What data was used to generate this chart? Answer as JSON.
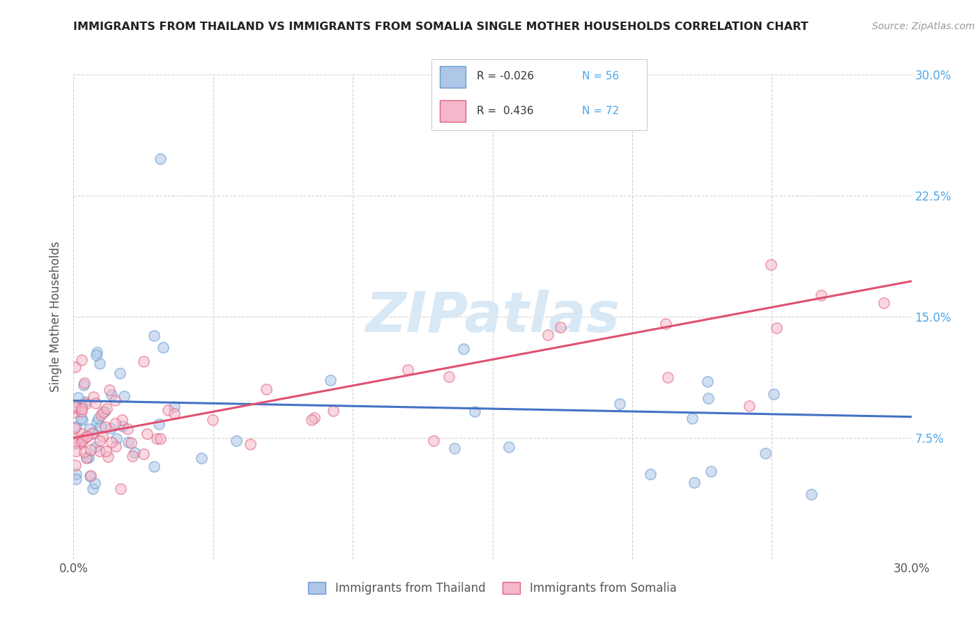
{
  "title": "IMMIGRANTS FROM THAILAND VS IMMIGRANTS FROM SOMALIA SINGLE MOTHER HOUSEHOLDS CORRELATION CHART",
  "source": "Source: ZipAtlas.com",
  "ylabel": "Single Mother Households",
  "xlim": [
    0.0,
    0.3
  ],
  "ylim": [
    0.0,
    0.3
  ],
  "xtick_positions": [
    0.0,
    0.05,
    0.1,
    0.15,
    0.2,
    0.25,
    0.3
  ],
  "xtick_labels": [
    "0.0%",
    "",
    "",
    "",
    "",
    "",
    "30.0%"
  ],
  "ytick_positions": [
    0.075,
    0.15,
    0.225,
    0.3
  ],
  "ytick_labels": [
    "7.5%",
    "15.0%",
    "22.5%",
    "30.0%"
  ],
  "color_thailand_fill": "#aec6e8",
  "color_thailand_edge": "#6699cc",
  "color_somalia_fill": "#f5b8cb",
  "color_somalia_edge": "#e0607a",
  "color_line_thailand": "#4472c4",
  "color_line_somalia": "#e05070",
  "watermark_color": "#d8e8f5",
  "watermark_text": "ZIPatlas",
  "legend_r1": "R = -0.026",
  "legend_n1": "N = 56",
  "legend_r2": "R =  0.436",
  "legend_n2": "N = 72",
  "legend_text_color": "#333333",
  "legend_num_color": "#4da6e8",
  "thai_trend_x0": 0.0,
  "thai_trend_y0": 0.098,
  "thai_trend_x1": 0.3,
  "thai_trend_y1": 0.088,
  "som_trend_x0": 0.0,
  "som_trend_y0": 0.075,
  "som_trend_x1": 0.3,
  "som_trend_y1": 0.172,
  "title_fontsize": 11.5,
  "source_fontsize": 10,
  "axis_label_fontsize": 12,
  "tick_fontsize": 12,
  "scatter_size": 120,
  "scatter_alpha": 0.55,
  "scatter_linewidth": 1.2
}
